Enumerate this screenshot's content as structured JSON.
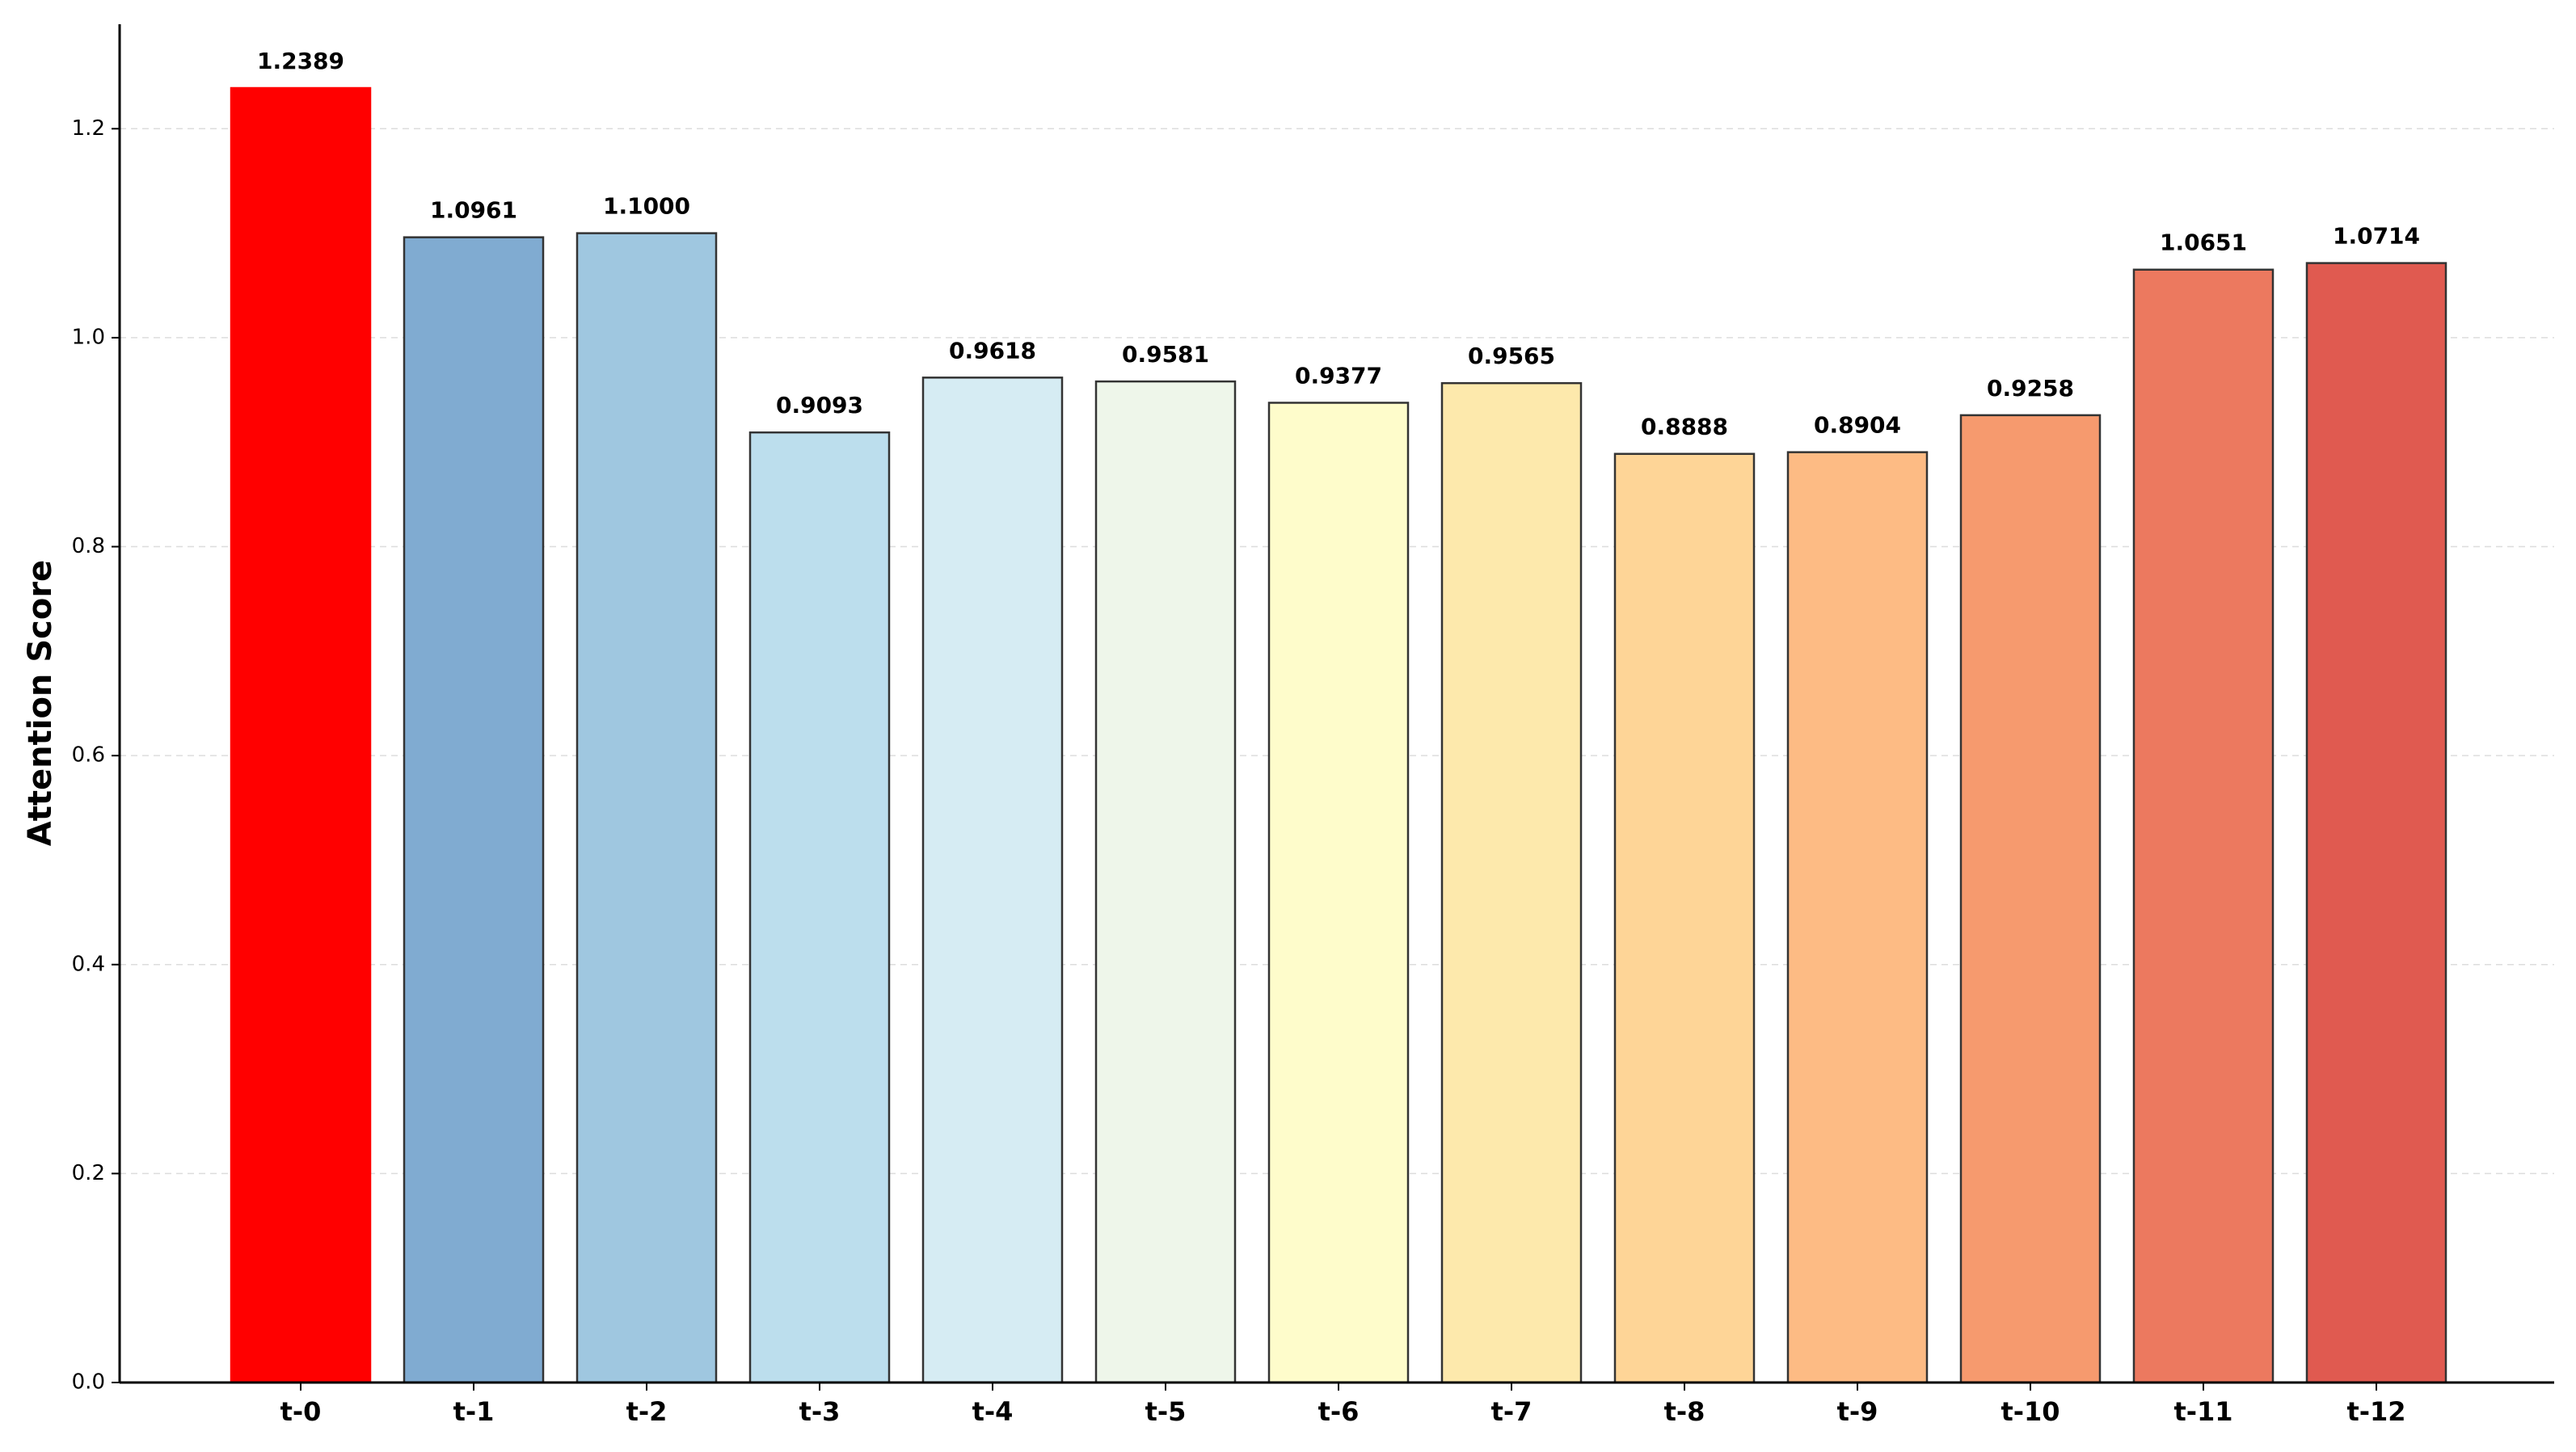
{
  "chart_data": {
    "type": "bar",
    "ylabel": "Attention Score",
    "categories": [
      "t-0",
      "t-1",
      "t-2",
      "t-3",
      "t-4",
      "t-5",
      "t-6",
      "t-7",
      "t-8",
      "t-9",
      "t-10",
      "t-11",
      "t-12"
    ],
    "values": [
      1.2389,
      1.0961,
      1.1,
      0.9093,
      0.9618,
      0.9581,
      0.9377,
      0.9565,
      0.8888,
      0.8904,
      0.9258,
      1.0651,
      1.0714
    ],
    "value_labels": [
      "1.2389",
      "1.0961",
      "1.1000",
      "0.9093",
      "0.9618",
      "0.9581",
      "0.9377",
      "0.9565",
      "0.8888",
      "0.8904",
      "0.9258",
      "1.0651",
      "1.0714"
    ],
    "colors": [
      "#ff0000",
      "#80abd1",
      "#9fc7e0",
      "#bcdeed",
      "#d6ecf3",
      "#eef6ea",
      "#fefccb",
      "#fde9ac",
      "#fed597",
      "#fdbb84",
      "#f69a6e",
      "#ec795f",
      "#e05a50"
    ],
    "ylim": [
      0,
      1.3
    ],
    "yticks": [
      {
        "value": 0,
        "label": "0.0"
      },
      {
        "value": 0.2,
        "label": "0.2"
      },
      {
        "value": 0.4,
        "label": "0.4"
      },
      {
        "value": 0.6,
        "label": "0.6"
      },
      {
        "value": 0.8,
        "label": "0.8"
      },
      {
        "value": 1.0,
        "label": "1.0"
      },
      {
        "value": 1.2,
        "label": "1.2"
      }
    ],
    "grid": true
  }
}
